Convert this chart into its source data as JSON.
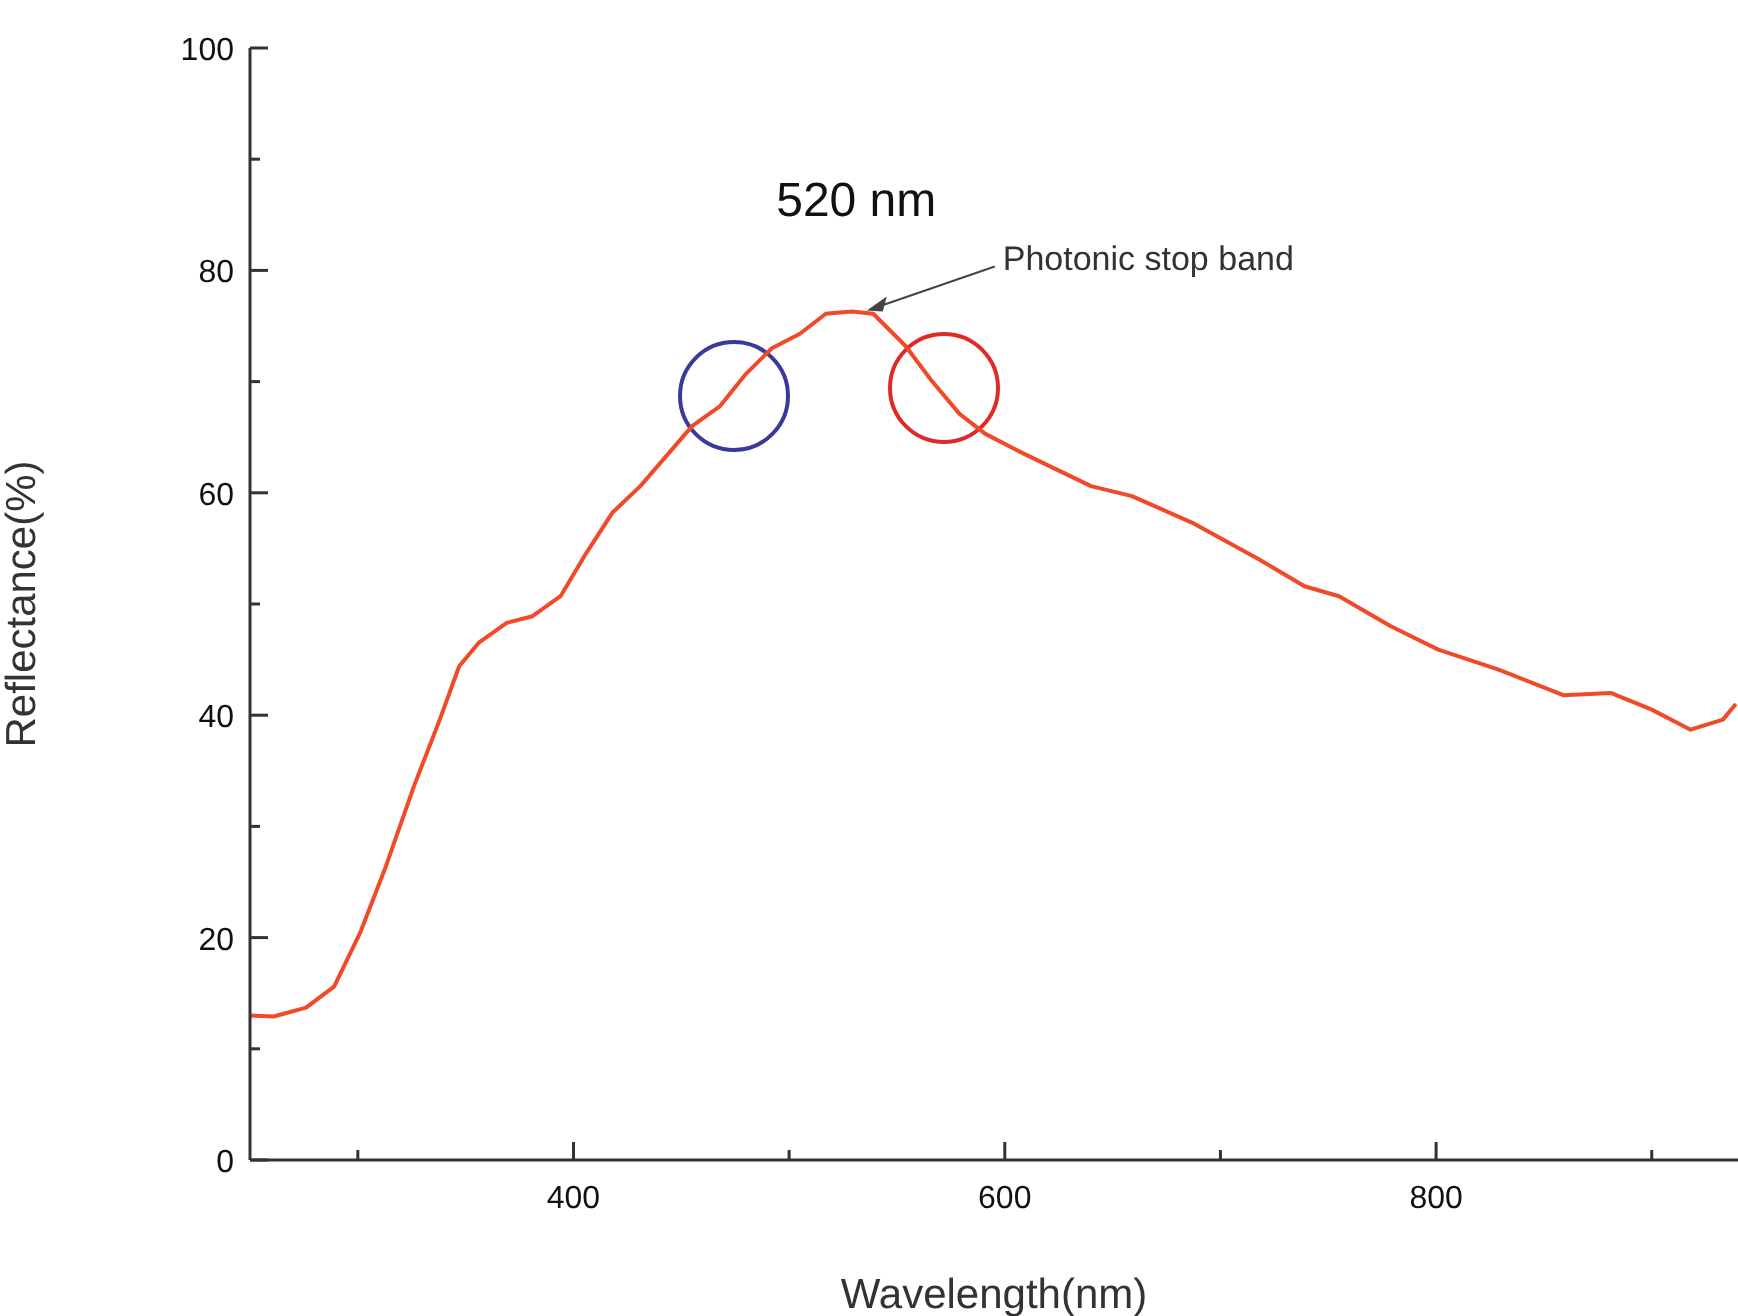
{
  "chart_data": {
    "type": "line",
    "xlabel": "Wavelength(nm)",
    "ylabel": "Reflectance(%)",
    "xlim": [
      250,
      940
    ],
    "ylim": [
      0,
      100
    ],
    "xticks": [
      {
        "value": 300,
        "label": null
      },
      400,
      {
        "value": 500,
        "label": null
      },
      600,
      {
        "value": 700,
        "label": null
      },
      800,
      {
        "value": 900,
        "label": null
      }
    ],
    "yticks": [
      0,
      {
        "value": 10,
        "label": null
      },
      20,
      {
        "value": 30,
        "label": null
      },
      40,
      {
        "value": 50,
        "label": null
      },
      60,
      {
        "value": 70,
        "label": null
      },
      80,
      {
        "value": 90,
        "label": null
      },
      100
    ],
    "grid": false,
    "legend": false,
    "marker": "none",
    "line_style": "solid",
    "annotations": [
      {
        "text": "520 nm",
        "x": 520,
        "y": 76.3
      },
      {
        "text": "Photonic stop band",
        "x": 536,
        "y": 76.4
      }
    ],
    "series": [
      {
        "color": "#f04a2a",
        "x": [
          250,
          261,
          276,
          289,
          301,
          313,
          326,
          338,
          347,
          356,
          369,
          381,
          394,
          406,
          418,
          431,
          443,
          455,
          468,
          480,
          492,
          505,
          517,
          529,
          539,
          554,
          566,
          579,
          591,
          609,
          640,
          659,
          687,
          718,
          739,
          755,
          779,
          801,
          829,
          859,
          881,
          900,
          918,
          933,
          939
        ],
        "values": [
          13.0,
          12.9,
          13.7,
          15.6,
          20.4,
          26.4,
          33.6,
          39.6,
          44.4,
          46.5,
          48.3,
          48.9,
          50.7,
          54.6,
          58.2,
          60.6,
          63.3,
          66.0,
          67.8,
          70.7,
          73.0,
          74.3,
          76.1,
          76.3,
          76.1,
          73.2,
          70.1,
          67.1,
          65.3,
          63.5,
          60.6,
          59.7,
          57.3,
          54.0,
          51.6,
          50.7,
          48.0,
          45.9,
          44.1,
          41.8,
          42.0,
          40.5,
          38.7,
          39.6,
          41.0
        ]
      }
    ]
  }
}
